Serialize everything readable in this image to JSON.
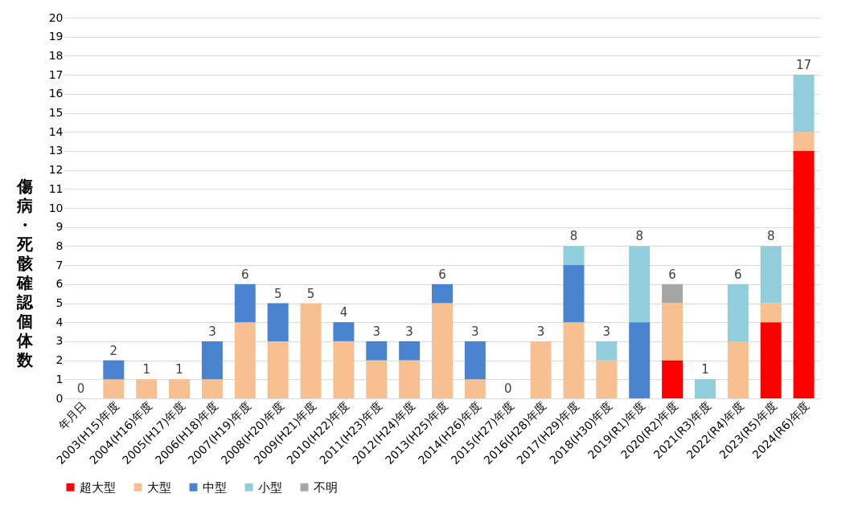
{
  "chart_data": {
    "type": "bar",
    "stacked": true,
    "ylabel": "傷病・死骸確認個体数",
    "categories": [
      "年月日",
      "2003(H15)年度",
      "2004(H16)年度",
      "2005(H17)年度",
      "2006(H18)年度",
      "2007(H19)年度",
      "2008(H20)年度",
      "2009(H21)年度",
      "2010(H22)年度",
      "2011(H23)年度",
      "2012(H24)年度",
      "2013(H25)年度",
      "2014(H26)年度",
      "2015(H27)年度",
      "2016(H28)年度",
      "2017(H29)年度",
      "2018(H30)年度",
      "2019(R1)年度",
      "2020(R2)年度",
      "2021(R3)年度",
      "2022(R4)年度",
      "2023(R5)年度",
      "2024(R6)年度"
    ],
    "series": [
      {
        "name": "超大型",
        "color": "#ff0000",
        "values": [
          null,
          null,
          null,
          null,
          null,
          null,
          null,
          null,
          null,
          null,
          null,
          null,
          null,
          null,
          null,
          null,
          null,
          null,
          2,
          null,
          null,
          4,
          13
        ]
      },
      {
        "name": "大型",
        "color": "#f8c090",
        "values": [
          null,
          1,
          1,
          1,
          1,
          4,
          3,
          5,
          3,
          2,
          2,
          5,
          1,
          null,
          3,
          4,
          2,
          null,
          3,
          null,
          3,
          1,
          1
        ]
      },
      {
        "name": "中型",
        "color": "#4a84d0",
        "values": [
          null,
          1,
          null,
          null,
          2,
          2,
          2,
          null,
          1,
          1,
          1,
          1,
          2,
          null,
          null,
          3,
          null,
          4,
          null,
          null,
          null,
          null,
          null
        ]
      },
      {
        "name": "小型",
        "color": "#92cddc",
        "values": [
          null,
          null,
          null,
          null,
          null,
          null,
          null,
          null,
          null,
          null,
          null,
          null,
          null,
          null,
          null,
          1,
          1,
          4,
          null,
          1,
          3,
          3,
          3
        ]
      },
      {
        "name": "不明",
        "color": "#a6a6a6",
        "values": [
          null,
          null,
          null,
          null,
          null,
          null,
          null,
          null,
          null,
          null,
          null,
          null,
          null,
          null,
          null,
          null,
          null,
          null,
          1,
          null,
          null,
          null,
          null
        ]
      }
    ],
    "totals": [
      "0",
      "2",
      "1",
      "1",
      "3",
      "6",
      "5",
      "5",
      "4",
      "3",
      "3",
      "6",
      "3",
      "0",
      "3",
      "8",
      "3",
      "8",
      "6",
      "1",
      "6",
      "8",
      "17"
    ],
    "ylim": [
      0,
      20
    ],
    "yticks": [
      0,
      1,
      2,
      3,
      4,
      5,
      6,
      7,
      8,
      9,
      10,
      11,
      12,
      13,
      14,
      15,
      16,
      17,
      18,
      19,
      20
    ],
    "grid": "y",
    "legend": "bottom"
  }
}
